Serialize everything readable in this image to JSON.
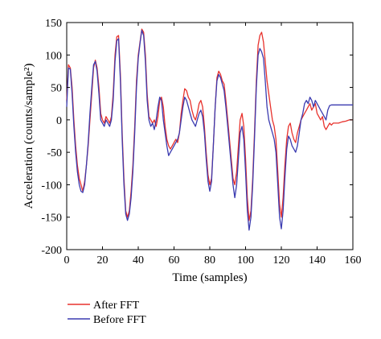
{
  "chart_data": {
    "type": "line",
    "title": "",
    "xlabel": "Time (samples)",
    "ylabel": "Acceleration (counts/sample²)",
    "xlim": [
      0,
      160
    ],
    "ylim": [
      -200,
      150
    ],
    "xticks": [
      0,
      20,
      40,
      60,
      80,
      100,
      120,
      140,
      160
    ],
    "yticks": [
      -200,
      -150,
      -100,
      -50,
      0,
      50,
      100,
      150
    ],
    "grid": false,
    "legend": "bottom-left, below plot",
    "series": [
      {
        "name": "After FFT",
        "color": "#e8322d",
        "points": [
          [
            0,
            30
          ],
          [
            1,
            85
          ],
          [
            2,
            80
          ],
          [
            3,
            50
          ],
          [
            4,
            0
          ],
          [
            5,
            -40
          ],
          [
            6,
            -70
          ],
          [
            7,
            -90
          ],
          [
            8,
            -100
          ],
          [
            9,
            -110
          ],
          [
            10,
            -95
          ],
          [
            11,
            -70
          ],
          [
            12,
            -40
          ],
          [
            13,
            0
          ],
          [
            14,
            40
          ],
          [
            15,
            80
          ],
          [
            16,
            92
          ],
          [
            17,
            80
          ],
          [
            18,
            50
          ],
          [
            19,
            10
          ],
          [
            20,
            0
          ],
          [
            21,
            -5
          ],
          [
            22,
            5
          ],
          [
            23,
            0
          ],
          [
            24,
            -5
          ],
          [
            25,
            5
          ],
          [
            26,
            40
          ],
          [
            27,
            100
          ],
          [
            28,
            128
          ],
          [
            29,
            130
          ],
          [
            30,
            70
          ],
          [
            31,
            -20
          ],
          [
            32,
            -90
          ],
          [
            33,
            -140
          ],
          [
            34,
            -150
          ],
          [
            35,
            -140
          ],
          [
            36,
            -110
          ],
          [
            37,
            -70
          ],
          [
            38,
            -10
          ],
          [
            39,
            60
          ],
          [
            40,
            100
          ],
          [
            41,
            120
          ],
          [
            42,
            140
          ],
          [
            43,
            135
          ],
          [
            44,
            100
          ],
          [
            45,
            40
          ],
          [
            46,
            5
          ],
          [
            47,
            0
          ],
          [
            48,
            -5
          ],
          [
            49,
            0
          ],
          [
            50,
            -10
          ],
          [
            51,
            5
          ],
          [
            52,
            30
          ],
          [
            53,
            35
          ],
          [
            54,
            20
          ],
          [
            55,
            -10
          ],
          [
            56,
            -30
          ],
          [
            57,
            -40
          ],
          [
            58,
            -45
          ],
          [
            59,
            -40
          ],
          [
            60,
            -35
          ],
          [
            61,
            -30
          ],
          [
            62,
            -35
          ],
          [
            63,
            -20
          ],
          [
            64,
            10
          ],
          [
            65,
            30
          ],
          [
            66,
            48
          ],
          [
            67,
            45
          ],
          [
            68,
            35
          ],
          [
            69,
            30
          ],
          [
            70,
            15
          ],
          [
            71,
            5
          ],
          [
            72,
            0
          ],
          [
            73,
            10
          ],
          [
            74,
            25
          ],
          [
            75,
            30
          ],
          [
            76,
            20
          ],
          [
            77,
            -10
          ],
          [
            78,
            -50
          ],
          [
            79,
            -85
          ],
          [
            80,
            -100
          ],
          [
            81,
            -90
          ],
          [
            82,
            -40
          ],
          [
            83,
            20
          ],
          [
            84,
            65
          ],
          [
            85,
            75
          ],
          [
            86,
            70
          ],
          [
            87,
            60
          ],
          [
            88,
            55
          ],
          [
            89,
            30
          ],
          [
            90,
            0
          ],
          [
            91,
            -30
          ],
          [
            92,
            -60
          ],
          [
            93,
            -90
          ],
          [
            94,
            -100
          ],
          [
            95,
            -80
          ],
          [
            96,
            -40
          ],
          [
            97,
            0
          ],
          [
            98,
            10
          ],
          [
            99,
            -10
          ],
          [
            100,
            -60
          ],
          [
            101,
            -120
          ],
          [
            102,
            -155
          ],
          [
            103,
            -140
          ],
          [
            104,
            -90
          ],
          [
            105,
            -20
          ],
          [
            106,
            60
          ],
          [
            107,
            115
          ],
          [
            108,
            130
          ],
          [
            109,
            135
          ],
          [
            110,
            120
          ],
          [
            111,
            90
          ],
          [
            112,
            60
          ],
          [
            113,
            40
          ],
          [
            114,
            20
          ],
          [
            115,
            0
          ],
          [
            116,
            -10
          ],
          [
            117,
            -30
          ],
          [
            118,
            -80
          ],
          [
            119,
            -130
          ],
          [
            120,
            -150
          ],
          [
            121,
            -120
          ],
          [
            122,
            -70
          ],
          [
            123,
            -30
          ],
          [
            124,
            -10
          ],
          [
            125,
            -5
          ],
          [
            126,
            -20
          ],
          [
            127,
            -30
          ],
          [
            128,
            -35
          ],
          [
            129,
            -20
          ],
          [
            130,
            -10
          ],
          [
            131,
            0
          ],
          [
            132,
            5
          ],
          [
            133,
            10
          ],
          [
            134,
            15
          ],
          [
            135,
            20
          ],
          [
            136,
            25
          ],
          [
            137,
            15
          ],
          [
            138,
            20
          ],
          [
            139,
            25
          ],
          [
            140,
            10
          ],
          [
            141,
            5
          ],
          [
            142,
            0
          ],
          [
            143,
            5
          ],
          [
            144,
            -10
          ],
          [
            145,
            -15
          ],
          [
            146,
            -10
          ],
          [
            147,
            -5
          ],
          [
            148,
            -8
          ],
          [
            149,
            -5
          ],
          [
            150,
            -5
          ],
          [
            152,
            -5
          ],
          [
            154,
            -3
          ],
          [
            156,
            -2
          ],
          [
            158,
            0
          ],
          [
            160,
            0
          ]
        ]
      },
      {
        "name": "Before FFT",
        "color": "#3b3bb0",
        "points": [
          [
            0,
            20
          ],
          [
            1,
            80
          ],
          [
            2,
            78
          ],
          [
            3,
            40
          ],
          [
            4,
            -10
          ],
          [
            5,
            -50
          ],
          [
            6,
            -80
          ],
          [
            7,
            -100
          ],
          [
            8,
            -110
          ],
          [
            9,
            -112
          ],
          [
            10,
            -100
          ],
          [
            11,
            -70
          ],
          [
            12,
            -35
          ],
          [
            13,
            10
          ],
          [
            14,
            50
          ],
          [
            15,
            85
          ],
          [
            16,
            90
          ],
          [
            17,
            75
          ],
          [
            18,
            40
          ],
          [
            19,
            0
          ],
          [
            20,
            -5
          ],
          [
            21,
            -10
          ],
          [
            22,
            0
          ],
          [
            23,
            -5
          ],
          [
            24,
            -10
          ],
          [
            25,
            0
          ],
          [
            26,
            30
          ],
          [
            27,
            90
          ],
          [
            28,
            122
          ],
          [
            29,
            125
          ],
          [
            30,
            60
          ],
          [
            31,
            -30
          ],
          [
            32,
            -100
          ],
          [
            33,
            -145
          ],
          [
            34,
            -155
          ],
          [
            35,
            -145
          ],
          [
            36,
            -120
          ],
          [
            37,
            -80
          ],
          [
            38,
            -20
          ],
          [
            39,
            50
          ],
          [
            40,
            95
          ],
          [
            41,
            118
          ],
          [
            42,
            138
          ],
          [
            43,
            130
          ],
          [
            44,
            90
          ],
          [
            45,
            30
          ],
          [
            46,
            0
          ],
          [
            47,
            -10
          ],
          [
            48,
            -5
          ],
          [
            49,
            -15
          ],
          [
            50,
            0
          ],
          [
            51,
            20
          ],
          [
            52,
            35
          ],
          [
            53,
            30
          ],
          [
            54,
            0
          ],
          [
            55,
            -20
          ],
          [
            56,
            -40
          ],
          [
            57,
            -55
          ],
          [
            58,
            -50
          ],
          [
            59,
            -45
          ],
          [
            60,
            -40
          ],
          [
            61,
            -35
          ],
          [
            62,
            -30
          ],
          [
            63,
            -20
          ],
          [
            64,
            0
          ],
          [
            65,
            20
          ],
          [
            66,
            35
          ],
          [
            67,
            30
          ],
          [
            68,
            20
          ],
          [
            69,
            10
          ],
          [
            70,
            0
          ],
          [
            71,
            -5
          ],
          [
            72,
            -10
          ],
          [
            73,
            0
          ],
          [
            74,
            10
          ],
          [
            75,
            15
          ],
          [
            76,
            5
          ],
          [
            77,
            -20
          ],
          [
            78,
            -60
          ],
          [
            79,
            -95
          ],
          [
            80,
            -110
          ],
          [
            81,
            -95
          ],
          [
            82,
            -40
          ],
          [
            83,
            20
          ],
          [
            84,
            60
          ],
          [
            85,
            70
          ],
          [
            86,
            65
          ],
          [
            87,
            55
          ],
          [
            88,
            45
          ],
          [
            89,
            20
          ],
          [
            90,
            -10
          ],
          [
            91,
            -40
          ],
          [
            92,
            -70
          ],
          [
            93,
            -100
          ],
          [
            94,
            -120
          ],
          [
            95,
            -100
          ],
          [
            96,
            -60
          ],
          [
            97,
            -20
          ],
          [
            98,
            -10
          ],
          [
            99,
            -30
          ],
          [
            100,
            -80
          ],
          [
            101,
            -140
          ],
          [
            102,
            -170
          ],
          [
            103,
            -150
          ],
          [
            104,
            -100
          ],
          [
            105,
            -30
          ],
          [
            106,
            50
          ],
          [
            107,
            100
          ],
          [
            108,
            110
          ],
          [
            109,
            105
          ],
          [
            110,
            95
          ],
          [
            111,
            60
          ],
          [
            112,
            20
          ],
          [
            113,
            0
          ],
          [
            114,
            -10
          ],
          [
            115,
            -20
          ],
          [
            116,
            -30
          ],
          [
            117,
            -50
          ],
          [
            118,
            -100
          ],
          [
            119,
            -150
          ],
          [
            120,
            -168
          ],
          [
            121,
            -140
          ],
          [
            122,
            -90
          ],
          [
            123,
            -45
          ],
          [
            124,
            -25
          ],
          [
            125,
            -30
          ],
          [
            126,
            -40
          ],
          [
            127,
            -45
          ],
          [
            128,
            -50
          ],
          [
            129,
            -40
          ],
          [
            130,
            -20
          ],
          [
            131,
            0
          ],
          [
            132,
            10
          ],
          [
            133,
            25
          ],
          [
            134,
            30
          ],
          [
            135,
            25
          ],
          [
            136,
            35
          ],
          [
            137,
            30
          ],
          [
            138,
            20
          ],
          [
            139,
            30
          ],
          [
            140,
            25
          ],
          [
            141,
            20
          ],
          [
            142,
            15
          ],
          [
            143,
            10
          ],
          [
            144,
            5
          ],
          [
            145,
            0
          ],
          [
            146,
            15
          ],
          [
            147,
            22
          ],
          [
            148,
            23
          ],
          [
            150,
            23
          ],
          [
            152,
            23
          ],
          [
            154,
            23
          ],
          [
            156,
            23
          ],
          [
            158,
            23
          ],
          [
            160,
            23
          ]
        ]
      }
    ]
  }
}
